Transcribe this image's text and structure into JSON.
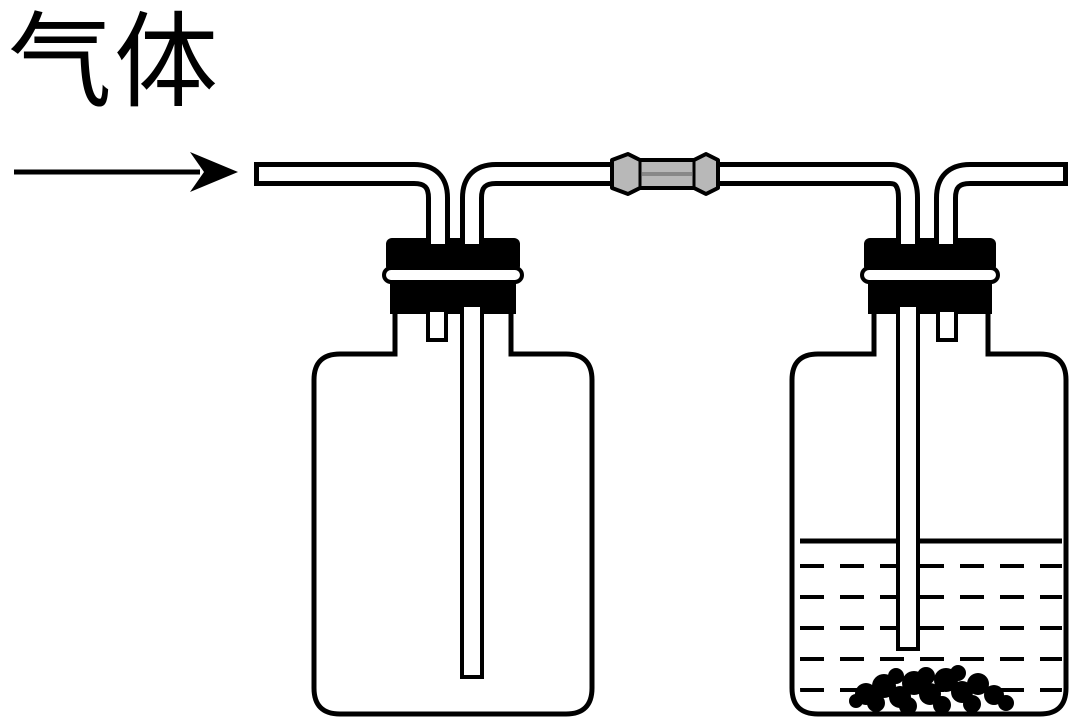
{
  "diagram": {
    "input_label": "气体"
  },
  "colors": {
    "ink": "#000000",
    "paper": "#ffffff",
    "connector_fill": "#b8b8b8"
  }
}
